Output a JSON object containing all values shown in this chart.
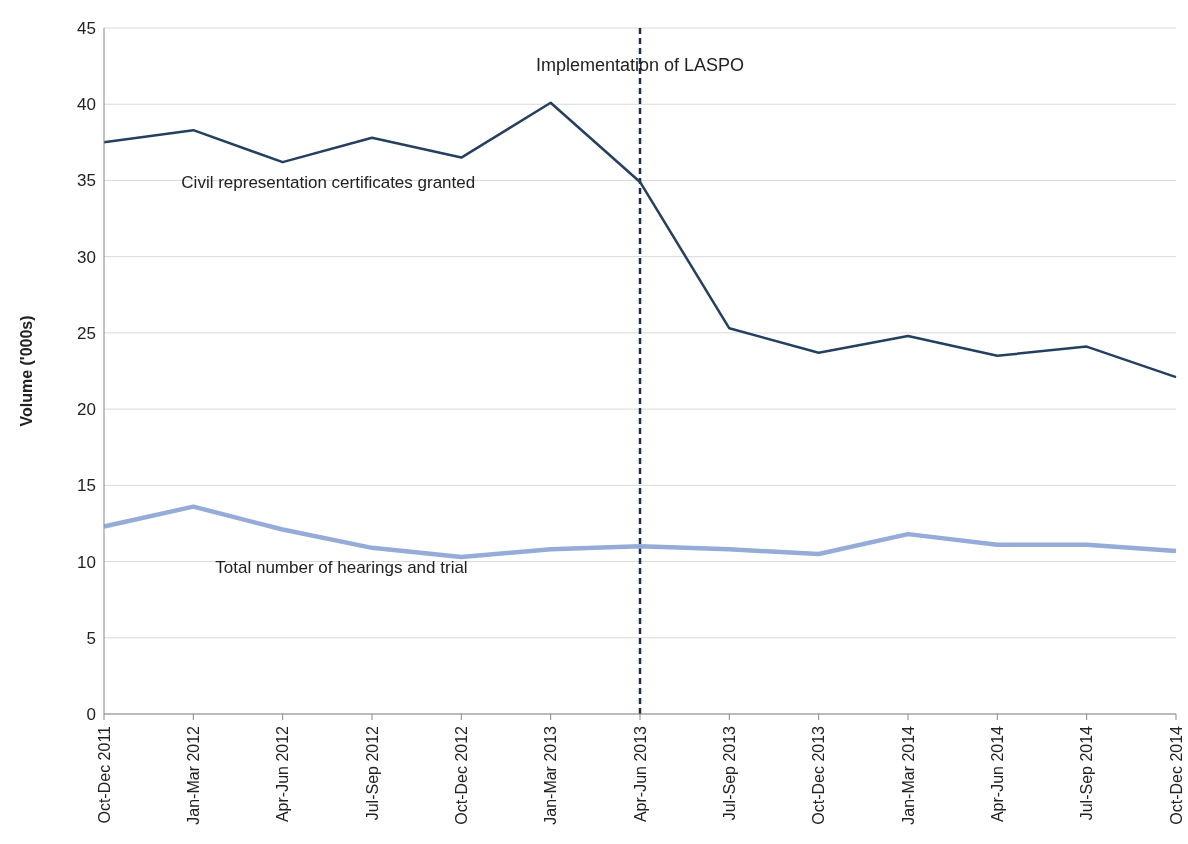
{
  "chart_data": {
    "type": "line",
    "ylabel": "Volume ('000s)",
    "categories": [
      "Oct-Dec 2011",
      "Jan-Mar 2012",
      "Apr-Jun 2012",
      "Jul-Sep 2012",
      "Oct-Dec 2012",
      "Jan-Mar 2013",
      "Apr-Jun 2013",
      "Jul-Sep 2013",
      "Oct-Dec 2013",
      "Jan-Mar 2014",
      "Apr-Jun 2014",
      "Jul-Sep 2014",
      "Oct-Dec 2014"
    ],
    "series": [
      {
        "name": "Civil representation certificates granted",
        "color": "#243f60",
        "values": [
          37.5,
          38.3,
          36.2,
          37.8,
          36.5,
          40.1,
          34.9,
          25.3,
          23.7,
          24.8,
          23.5,
          24.1,
          22.1
        ]
      },
      {
        "name": "Total number of hearings and trial",
        "color": "#95abd8",
        "values": [
          12.3,
          13.6,
          12.1,
          10.9,
          10.3,
          10.8,
          11.0,
          10.8,
          10.5,
          11.8,
          11.1,
          11.1,
          10.7
        ]
      }
    ],
    "ylim": [
      0,
      45
    ],
    "yticks": [
      0,
      5,
      10,
      15,
      20,
      25,
      30,
      35,
      40,
      45
    ],
    "grid": "y",
    "legend": false,
    "marker": "none",
    "line_style": "solid",
    "ref_lines": [
      {
        "axis": "x",
        "value": "Apr-Jun 2013",
        "label": "Implementation of LASPO",
        "color": "#1f2d4a",
        "line_style": "dashed"
      }
    ]
  }
}
